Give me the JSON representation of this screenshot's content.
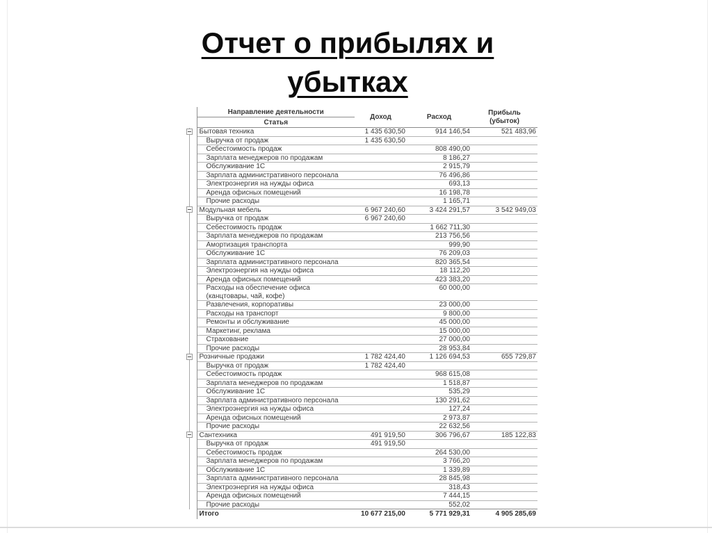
{
  "title": {
    "line1": "Отчет о прибылях и",
    "line2": "убытках"
  },
  "icons": {
    "group_collapse": "minus-square-icon"
  },
  "colors": {
    "title_text": "#0c0c0c",
    "table_text": "#3c3c3c",
    "grid_line": "#b2b2b2",
    "strong_grid_line": "#8a8a8a"
  },
  "table": {
    "header": {
      "activity": "Направление деятельности",
      "article": "Статья",
      "income": "Доход",
      "expense": "Расход",
      "profit_line1": "Прибыль",
      "profit_line2": "(убыток)"
    },
    "groups": [
      {
        "name": "Бытовая техника",
        "income": "1 435 630,50",
        "expense": "914 146,54",
        "profit": "521 483,96",
        "rows": [
          {
            "label": "Выручка от продаж",
            "income": "1 435 630,50"
          },
          {
            "label": "Себестоимость продаж",
            "expense": "808 490,00"
          },
          {
            "label": "Зарплата менеджеров по продажам",
            "expense": "8 186,27"
          },
          {
            "label": "Обслуживание 1С",
            "expense": "2 915,79"
          },
          {
            "label": "Зарплата административного персонала",
            "expense": "76 496,86"
          },
          {
            "label": "Электроэнергия на нужды офиса",
            "expense": "693,13"
          },
          {
            "label": "Аренда офисных помещений",
            "expense": "16 198,78"
          },
          {
            "label": "Прочие расходы",
            "expense": "1 165,71"
          }
        ]
      },
      {
        "name": "Модульная мебель",
        "income": "6 967 240,60",
        "expense": "3 424 291,57",
        "profit": "3 542 949,03",
        "rows": [
          {
            "label": "Выручка от продаж",
            "income": "6 967 240,60"
          },
          {
            "label": "Себестоимость продаж",
            "expense": "1 662 711,30"
          },
          {
            "label": "Зарплата менеджеров по продажам",
            "expense": "213 756,56"
          },
          {
            "label": "Амортизация транспорта",
            "expense": "999,90"
          },
          {
            "label": "Обслуживание 1С",
            "expense": "76 209,03"
          },
          {
            "label": "Зарплата административного персонала",
            "expense": "820 365,54"
          },
          {
            "label": "Электроэнергия на нужды офиса",
            "expense": "18 112,20"
          },
          {
            "label": "Аренда офисных помещений",
            "expense": "423 383,20"
          },
          {
            "label": "Расходы на обеспечение офиса",
            "label2": "(канцтовары, чай, кофе)",
            "expense": "60 000,00"
          },
          {
            "label": "Развлечения, корпоративы",
            "expense": "23 000,00"
          },
          {
            "label": "Расходы на транспорт",
            "expense": "9 800,00"
          },
          {
            "label": "Ремонты и обслуживание",
            "expense": "45 000,00"
          },
          {
            "label": "Маркетинг, реклама",
            "expense": "15 000,00"
          },
          {
            "label": "Страхование",
            "expense": "27 000,00"
          },
          {
            "label": "Прочие расходы",
            "expense": "28 953,84"
          }
        ]
      },
      {
        "name": "Розничные продажи",
        "income": "1 782 424,40",
        "expense": "1 126 694,53",
        "profit": "655 729,87",
        "rows": [
          {
            "label": "Выручка от продаж",
            "income": "1 782 424,40"
          },
          {
            "label": "Себестоимость продаж",
            "expense": "968 615,08"
          },
          {
            "label": "Зарплата менеджеров по продажам",
            "expense": "1 518,87"
          },
          {
            "label": "Обслуживание 1С",
            "expense": "535,29"
          },
          {
            "label": "Зарплата административного персонала",
            "expense": "130 291,62"
          },
          {
            "label": "Электроэнергия на нужды офиса",
            "expense": "127,24"
          },
          {
            "label": "Аренда офисных помещений",
            "expense": "2 973,87"
          },
          {
            "label": "Прочие расходы",
            "expense": "22 632,56"
          }
        ]
      },
      {
        "name": "Сантехника",
        "income": "491 919,50",
        "expense": "306 796,67",
        "profit": "185 122,83",
        "rows": [
          {
            "label": "Выручка от продаж",
            "income": "491 919,50"
          },
          {
            "label": "Себестоимость продаж",
            "expense": "264 530,00"
          },
          {
            "label": "Зарплата менеджеров по продажам",
            "expense": "3 766,20"
          },
          {
            "label": "Обслуживание 1С",
            "expense": "1 339,89"
          },
          {
            "label": "Зарплата административного персонала",
            "expense": "28 845,98"
          },
          {
            "label": "Электроэнергия на нужды офиса",
            "expense": "318,43"
          },
          {
            "label": "Аренда офисных помещений",
            "expense": "7 444,15"
          },
          {
            "label": "Прочие расходы",
            "expense": "552,02"
          }
        ]
      }
    ],
    "total": {
      "label": "Итого",
      "income": "10 677 215,00",
      "expense": "5 771 929,31",
      "profit": "4 905 285,69"
    }
  }
}
